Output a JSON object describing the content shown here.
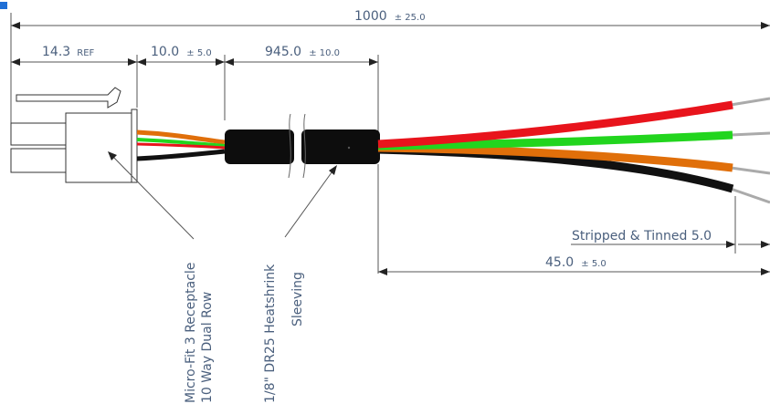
{
  "dimensions": {
    "overall": {
      "value": "1000",
      "tolerance": "± 25.0"
    },
    "connector_length": {
      "value": "14.3",
      "suffix": "REF"
    },
    "connector_gap": {
      "value": "10.0",
      "tolerance": "± 5.0"
    },
    "sleeve_length": {
      "value": "945.0",
      "tolerance": "± 10.0"
    },
    "strip": {
      "label": "Stripped  & Tinned 5.0"
    },
    "breakout": {
      "value": "45.0",
      "tolerance": "± 5.0"
    }
  },
  "callouts": {
    "connector": {
      "line1": "Micro-Fit 3 Receptacle",
      "line2": "10 Way Dual Row"
    },
    "sleeving": {
      "line1": "1/8\" DR25 Heatshrink",
      "line2": "Sleeving"
    }
  },
  "colors": {
    "wire_red": "#e8141c",
    "wire_green": "#22d51e",
    "wire_orange": "#e06f0a",
    "wire_black": "#111111",
    "sleeve": "#0d0d0d",
    "connector_outline": "#333333",
    "dimension_text": "#4a5f7d"
  }
}
